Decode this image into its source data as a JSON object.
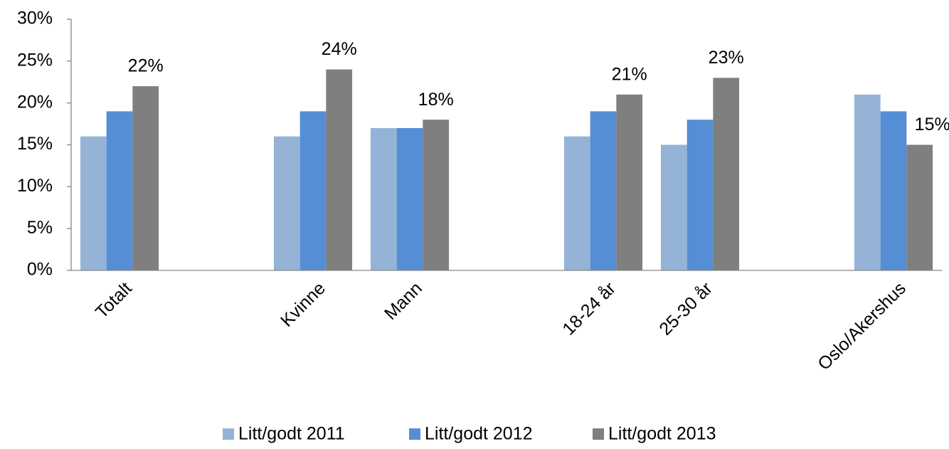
{
  "chart_data": {
    "type": "bar",
    "categories": [
      "Totalt",
      null,
      "Kvinne",
      "Mann",
      null,
      "18-24 år",
      "25-30 år",
      null,
      "Oslo/Akershus"
    ],
    "series": [
      {
        "name": "Litt/godt 2011",
        "color": "#95b3d7",
        "values": [
          16,
          null,
          16,
          17,
          null,
          16,
          15,
          null,
          21
        ]
      },
      {
        "name": "Litt/godt 2012",
        "color": "#558ed5",
        "values": [
          19,
          null,
          19,
          17,
          null,
          19,
          18,
          null,
          19
        ]
      },
      {
        "name": "Litt/godt 2013",
        "color": "#7f7f7f",
        "values": [
          22,
          null,
          24,
          18,
          null,
          21,
          23,
          null,
          15
        ],
        "value_labels": [
          "22%",
          null,
          "24%",
          "18%",
          null,
          "21%",
          "23%",
          null,
          "15%"
        ]
      }
    ],
    "ylim": [
      0,
      30
    ],
    "yticks": [
      {
        "value": 0,
        "label": "0%"
      },
      {
        "value": 5,
        "label": "5%"
      },
      {
        "value": 10,
        "label": "10%"
      },
      {
        "value": 15,
        "label": "15%"
      },
      {
        "value": 20,
        "label": "20%"
      },
      {
        "value": 25,
        "label": "25%"
      },
      {
        "value": 30,
        "label": "30%"
      }
    ],
    "legend": "bottom"
  }
}
